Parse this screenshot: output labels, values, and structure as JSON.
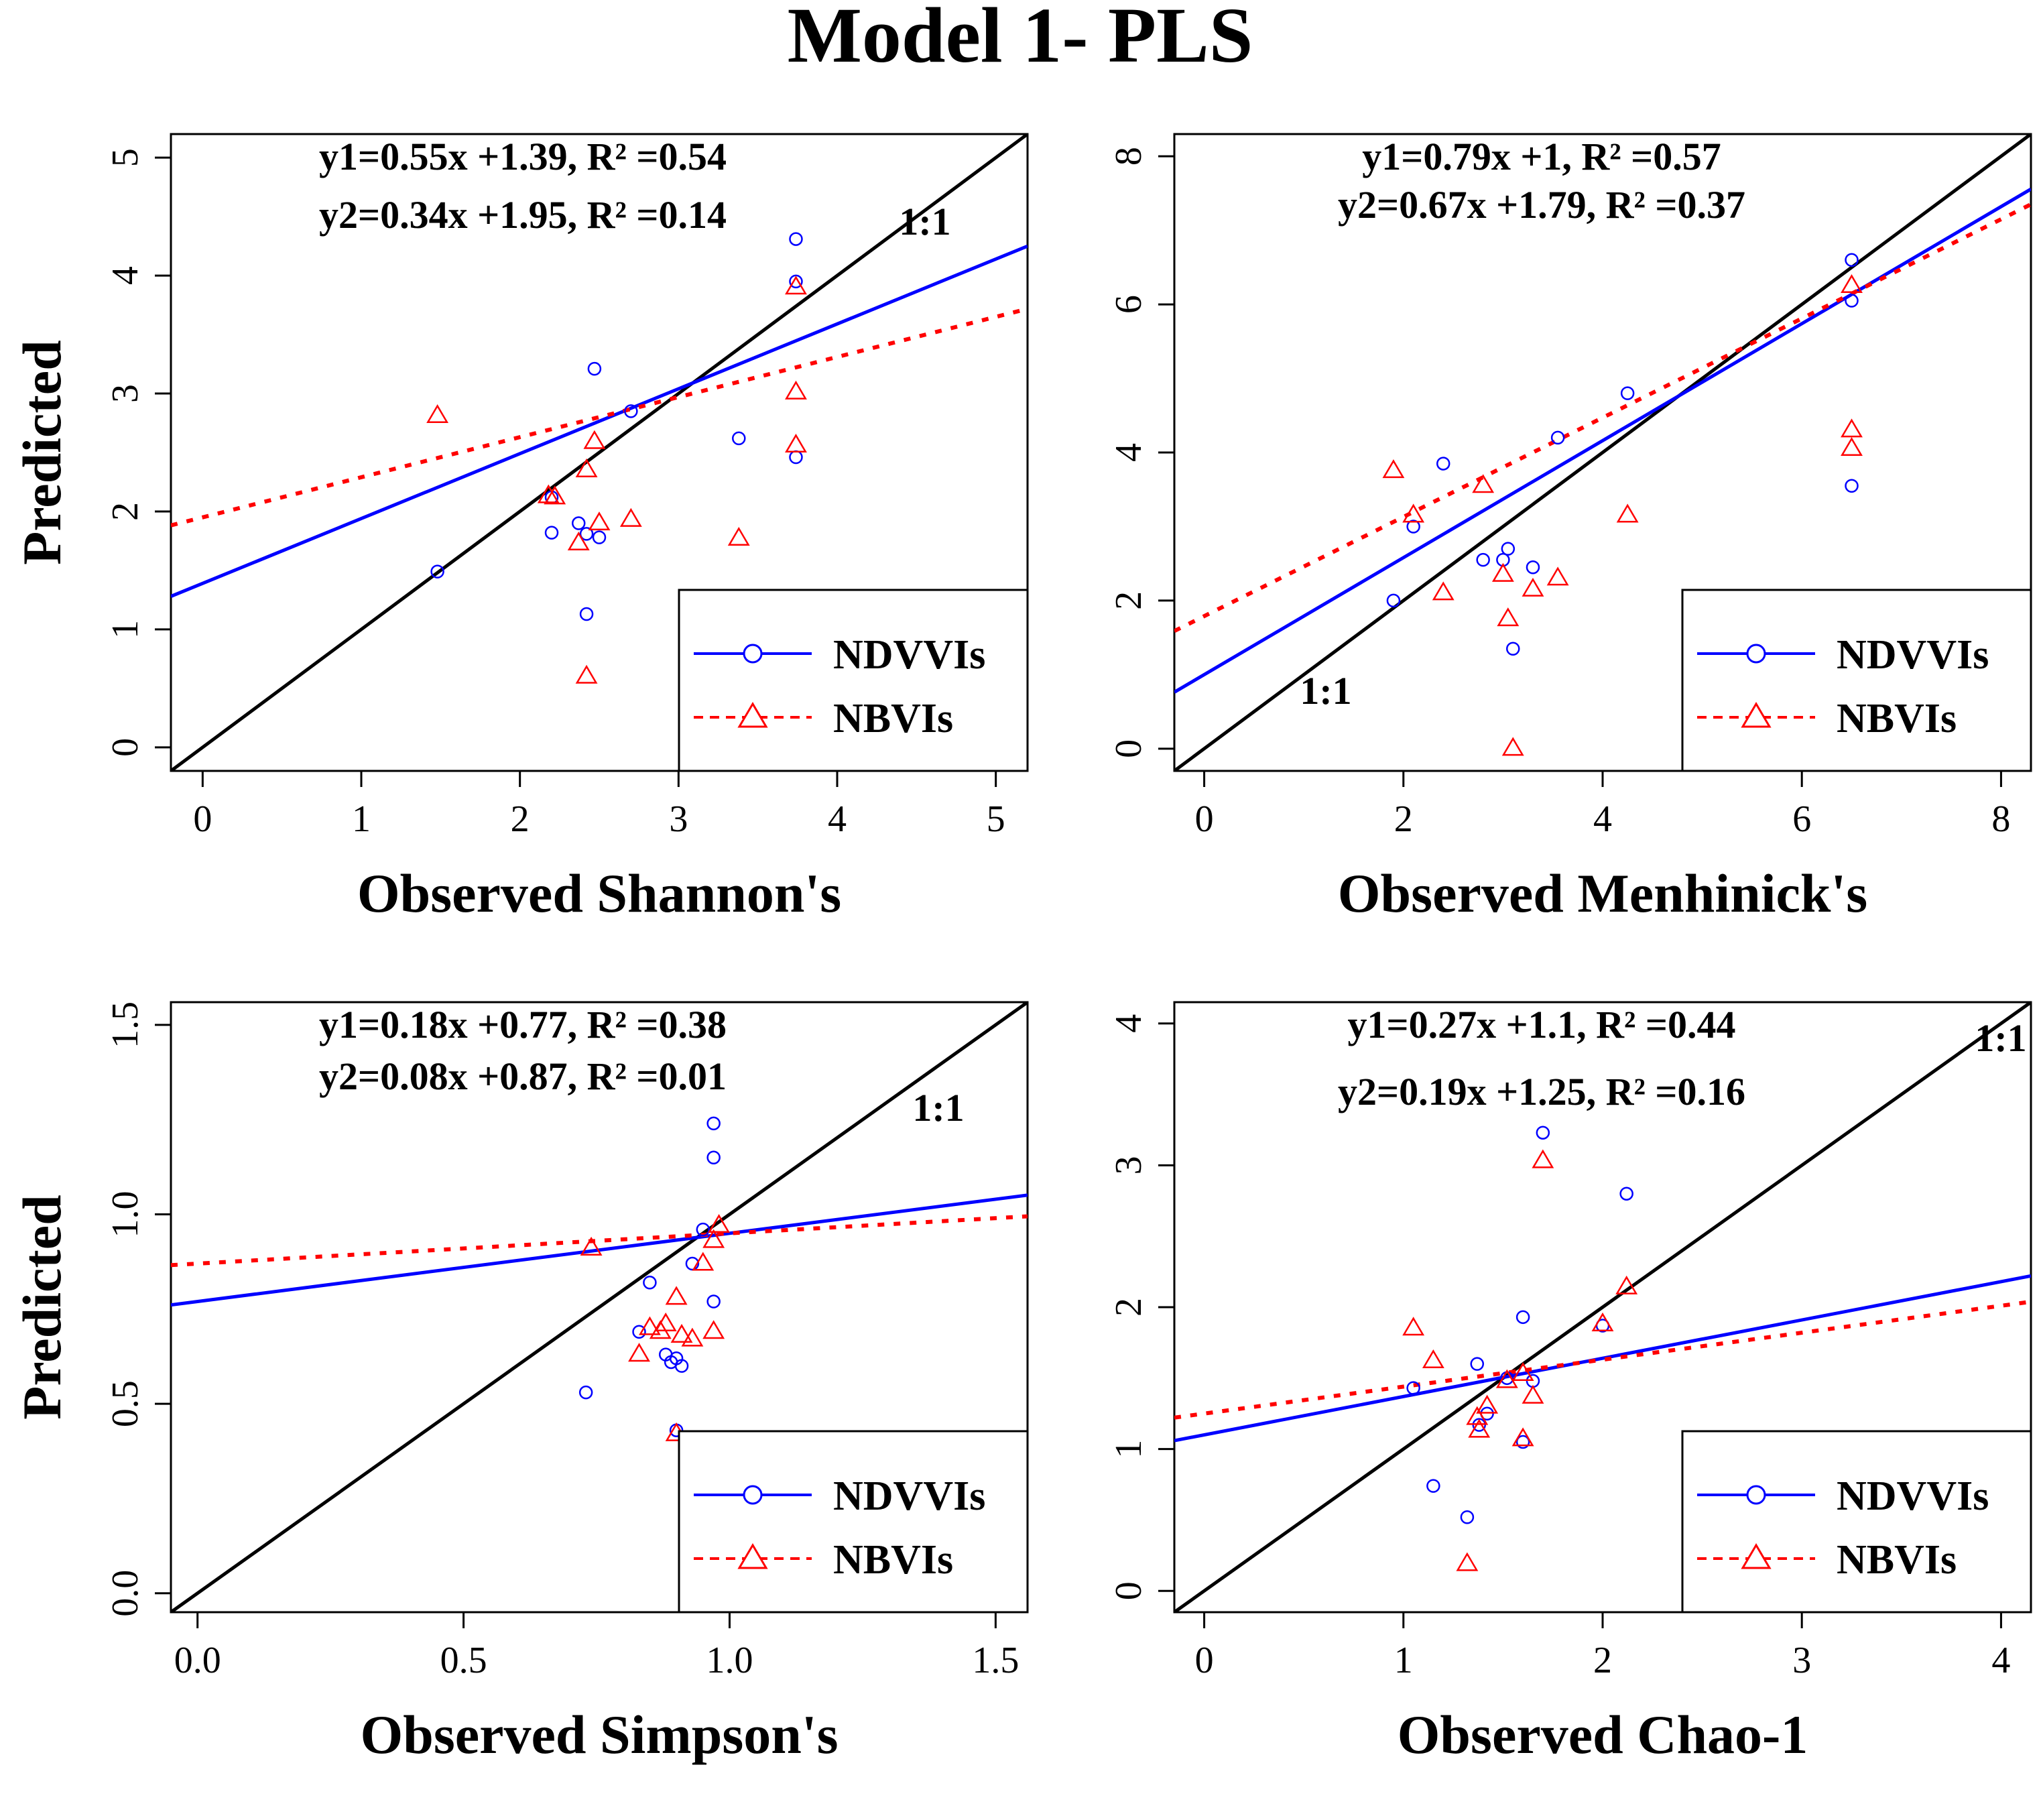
{
  "title": "Model 1- PLS",
  "colors": {
    "ndvvi": "#0000ff",
    "nbvi": "#ff0000",
    "identity": "#000000"
  },
  "chart_data": [
    {
      "type": "scatter",
      "xlabel": "Observed Shannon's",
      "ylabel": "Predicted",
      "xlim": [
        -0.2,
        5.2
      ],
      "ylim": [
        -0.2,
        5.2
      ],
      "xticks": [
        "0",
        "1",
        "2",
        "3",
        "4",
        "5"
      ],
      "yticks": [
        "0",
        "1",
        "2",
        "3",
        "4",
        "5"
      ],
      "equation_1": "y1=0.55x +1.39, R² =0.54",
      "equation_2": "y2=0.34x +1.95, R² =0.14",
      "identity_label": "1:1",
      "legend": [
        "NDVVIs",
        "NBVIs"
      ],
      "series": [
        {
          "name": "NDVVIs",
          "fit": {
            "slope": 0.55,
            "intercept": 1.39
          },
          "points": [
            [
              1.48,
              1.49
            ],
            [
              2.2,
              1.82
            ],
            [
              2.2,
              2.12
            ],
            [
              2.37,
              1.9
            ],
            [
              2.42,
              1.81
            ],
            [
              2.42,
              1.13
            ],
            [
              2.47,
              3.21
            ],
            [
              2.5,
              1.78
            ],
            [
              2.7,
              2.85
            ],
            [
              3.38,
              2.62
            ],
            [
              3.74,
              2.46
            ],
            [
              3.74,
              3.95
            ],
            [
              3.74,
              4.31
            ]
          ]
        },
        {
          "name": "NBVIs",
          "fit": {
            "slope": 0.34,
            "intercept": 1.95
          },
          "points": [
            [
              1.48,
              2.81
            ],
            [
              2.18,
              2.13
            ],
            [
              2.22,
              2.12
            ],
            [
              2.37,
              1.73
            ],
            [
              2.42,
              2.35
            ],
            [
              2.42,
              0.6
            ],
            [
              2.47,
              2.59
            ],
            [
              2.5,
              1.9
            ],
            [
              2.7,
              1.93
            ],
            [
              3.38,
              1.77
            ],
            [
              3.74,
              2.56
            ],
            [
              3.74,
              3.01
            ],
            [
              3.74,
              3.9
            ]
          ]
        }
      ]
    },
    {
      "type": "scatter",
      "xlabel": "Observed Menhinick's",
      "ylabel": "",
      "xlim": [
        -0.3,
        8.3
      ],
      "ylim": [
        -0.3,
        8.3
      ],
      "xticks": [
        "0",
        "2",
        "4",
        "6",
        "8"
      ],
      "yticks": [
        "0",
        "2",
        "4",
        "6",
        "8"
      ],
      "equation_1": "y1=0.79x +1, R² =0.57",
      "equation_2": "y2=0.67x +1.79, R² =0.37",
      "identity_label": "1:1",
      "legend": [
        "NDVVIs",
        "NBVIs"
      ],
      "series": [
        {
          "name": "NDVVIs",
          "fit": {
            "slope": 0.79,
            "intercept": 1.0
          },
          "points": [
            [
              1.9,
              2.0
            ],
            [
              2.1,
              3.0
            ],
            [
              2.4,
              3.85
            ],
            [
              2.8,
              2.55
            ],
            [
              3.0,
              2.55
            ],
            [
              3.05,
              2.7
            ],
            [
              3.1,
              1.35
            ],
            [
              3.3,
              2.45
            ],
            [
              3.55,
              4.2
            ],
            [
              4.25,
              4.8
            ],
            [
              6.5,
              3.55
            ],
            [
              6.5,
              6.05
            ],
            [
              6.5,
              6.6
            ]
          ]
        },
        {
          "name": "NBVIs",
          "fit": {
            "slope": 0.67,
            "intercept": 1.79
          },
          "points": [
            [
              1.9,
              3.75
            ],
            [
              2.1,
              3.15
            ],
            [
              2.4,
              2.1
            ],
            [
              2.8,
              3.55
            ],
            [
              3.0,
              2.35
            ],
            [
              3.05,
              1.75
            ],
            [
              3.1,
              0.0
            ],
            [
              3.3,
              2.15
            ],
            [
              3.55,
              2.3
            ],
            [
              4.25,
              3.15
            ],
            [
              6.5,
              4.05
            ],
            [
              6.5,
              4.3
            ],
            [
              6.5,
              6.25
            ]
          ]
        }
      ]
    },
    {
      "type": "scatter",
      "xlabel": "Observed Simpson's",
      "ylabel": "Predicted",
      "xlim": [
        -0.05,
        1.56
      ],
      "ylim": [
        -0.05,
        1.56
      ],
      "xticks": [
        "0.0",
        "0.5",
        "1.0",
        "1.5"
      ],
      "yticks": [
        "0.0",
        "0.5",
        "1.0",
        "1.5"
      ],
      "equation_1": "y1=0.18x +0.77, R² =0.38",
      "equation_2": "y2=0.08x +0.87, R² =0.01",
      "identity_label": "1:1",
      "legend": [
        "NDVVIs",
        "NBVIs"
      ],
      "series": [
        {
          "name": "NDVVIs",
          "fit": {
            "slope": 0.18,
            "intercept": 0.77
          },
          "points": [
            [
              0.73,
              0.53
            ],
            [
              0.83,
              0.69
            ],
            [
              0.85,
              0.82
            ],
            [
              0.88,
              0.63
            ],
            [
              0.89,
              0.61
            ],
            [
              0.9,
              0.62
            ],
            [
              0.9,
              0.43
            ],
            [
              0.91,
              0.6
            ],
            [
              0.93,
              0.87
            ],
            [
              0.95,
              0.96
            ],
            [
              0.97,
              0.77
            ],
            [
              0.97,
              1.15
            ],
            [
              0.97,
              1.24
            ]
          ]
        },
        {
          "name": "NBVIs",
          "fit": {
            "slope": 0.08,
            "intercept": 0.87
          },
          "points": [
            [
              0.74,
              0.91
            ],
            [
              0.83,
              0.63
            ],
            [
              0.85,
              0.7
            ],
            [
              0.87,
              0.69
            ],
            [
              0.88,
              0.71
            ],
            [
              0.9,
              0.78
            ],
            [
              0.9,
              0.42
            ],
            [
              0.91,
              0.68
            ],
            [
              0.93,
              0.67
            ],
            [
              0.95,
              0.87
            ],
            [
              0.97,
              0.69
            ],
            [
              0.97,
              0.93
            ],
            [
              0.98,
              0.97
            ]
          ]
        }
      ]
    },
    {
      "type": "scatter",
      "xlabel": "Observed Chao-1",
      "ylabel": "",
      "xlim": [
        -0.15,
        4.15
      ],
      "ylim": [
        -0.15,
        4.15
      ],
      "xticks": [
        "0",
        "1",
        "2",
        "3",
        "4"
      ],
      "yticks": [
        "0",
        "1",
        "2",
        "3",
        "4"
      ],
      "equation_1": "y1=0.27x +1.1, R² =0.44",
      "equation_2": "y2=0.19x +1.25, R² =0.16",
      "identity_label": "1:1",
      "legend": [
        "NDVVIs",
        "NBVIs"
      ],
      "series": [
        {
          "name": "NDVVIs",
          "fit": {
            "slope": 0.27,
            "intercept": 1.1
          },
          "points": [
            [
              1.05,
              1.43
            ],
            [
              1.15,
              0.74
            ],
            [
              1.32,
              0.52
            ],
            [
              1.37,
              1.6
            ],
            [
              1.38,
              1.17
            ],
            [
              1.6,
              1.05
            ],
            [
              1.6,
              1.93
            ],
            [
              1.65,
              1.48
            ],
            [
              1.7,
              3.23
            ],
            [
              2.0,
              1.87
            ],
            [
              2.12,
              2.8
            ],
            [
              1.52,
              1.5
            ],
            [
              1.42,
              1.25
            ]
          ]
        },
        {
          "name": "NBVIs",
          "fit": {
            "slope": 0.19,
            "intercept": 1.25
          },
          "points": [
            [
              1.05,
              1.85
            ],
            [
              1.15,
              1.62
            ],
            [
              1.32,
              0.19
            ],
            [
              1.37,
              1.22
            ],
            [
              1.38,
              1.13
            ],
            [
              1.6,
              1.07
            ],
            [
              1.6,
              1.53
            ],
            [
              1.65,
              1.37
            ],
            [
              1.7,
              3.03
            ],
            [
              2.0,
              1.88
            ],
            [
              2.12,
              2.14
            ],
            [
              1.52,
              1.48
            ],
            [
              1.42,
              1.3
            ]
          ]
        }
      ]
    }
  ]
}
